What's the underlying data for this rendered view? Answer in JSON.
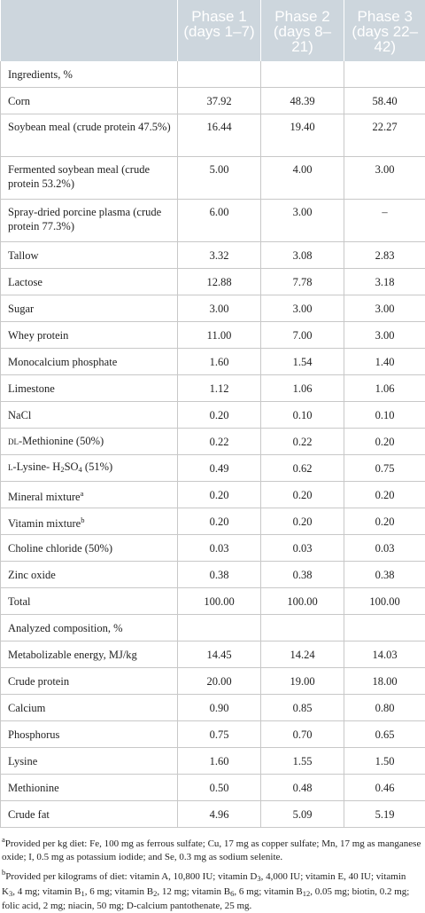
{
  "header": {
    "col0": "",
    "phase1": "Phase 1 (days 1–7)",
    "phase2": "Phase 2 (days 8–21)",
    "phase3": "Phase 3 (days 22–42)"
  },
  "rows": {
    "ingredients_head": "Ingredients, %",
    "corn": [
      "Corn",
      "37.92",
      "48.39",
      "58.40"
    ],
    "sbm": [
      "Soybean meal (crude protein 47.5%)",
      "16.44",
      "19.40",
      "22.27"
    ],
    "fsbm": [
      "Fermented soybean meal (crude protein 53.2%)",
      "5.00",
      "4.00",
      "3.00"
    ],
    "sdpp": [
      "Spray-dried porcine plasma (crude protein 77.3%)",
      "6.00",
      "3.00",
      "–"
    ],
    "tallow": [
      "Tallow",
      "3.32",
      "3.08",
      "2.83"
    ],
    "lactose": [
      "Lactose",
      "12.88",
      "7.78",
      "3.18"
    ],
    "sugar": [
      "Sugar",
      "3.00",
      "3.00",
      "3.00"
    ],
    "whey": [
      "Whey protein",
      "11.00",
      "7.00",
      "3.00"
    ],
    "mcp": [
      "Monocalcium phosphate",
      "1.60",
      "1.54",
      "1.40"
    ],
    "limestone": [
      "Limestone",
      "1.12",
      "1.06",
      "1.06"
    ],
    "nacl": [
      "NaCl",
      "0.20",
      "0.10",
      "0.10"
    ],
    "met_prefix": "DL",
    "met": [
      "-Methionine (50%)",
      "0.22",
      "0.22",
      "0.20"
    ],
    "lys_prefix": "L",
    "lys_a": "-Lysine- H",
    "lys_sub1": "2",
    "lys_b": "SO",
    "lys_sub2": "4",
    "lys_c": " (51%)",
    "lys": [
      "",
      "0.49",
      "0.62",
      "0.75"
    ],
    "mineral": [
      "Mineral mixture",
      "0.20",
      "0.20",
      "0.20"
    ],
    "mineral_sup": "a",
    "vitamin": [
      "Vitamin mixture",
      "0.20",
      "0.20",
      "0.20"
    ],
    "vitamin_sup": "b",
    "choline": [
      "Choline chloride (50%)",
      "0.03",
      "0.03",
      "0.03"
    ],
    "zinc": [
      "Zinc oxide",
      "0.38",
      "0.38",
      "0.38"
    ],
    "total": [
      "Total",
      "100.00",
      "100.00",
      "100.00"
    ],
    "analyzed_head": "Analyzed composition, %",
    "me": [
      "Metabolizable energy, MJ/kg",
      "14.45",
      "14.24",
      "14.03"
    ],
    "cp": [
      "Crude protein",
      "20.00",
      "19.00",
      "18.00"
    ],
    "ca": [
      "Calcium",
      "0.90",
      "0.85",
      "0.80"
    ],
    "p": [
      "Phosphorus",
      "0.75",
      "0.70",
      "0.65"
    ],
    "lysine": [
      "Lysine",
      "1.60",
      "1.55",
      "1.50"
    ],
    "methionine": [
      "Methionine",
      "0.50",
      "0.48",
      "0.46"
    ],
    "fat": [
      "Crude fat",
      "4.96",
      "5.09",
      "5.19"
    ]
  },
  "footnotes": {
    "a_mark": "a",
    "a_text": "Provided per kg diet: Fe, 100 mg as ferrous sulfate; Cu, 17 mg as copper sulfate; Mn, 17 mg as manganese oxide; I, 0.5 mg as potassium iodide; and Se, 0.3 mg as sodium selenite.",
    "b_mark": "b",
    "b_t1": "Provided per kilograms of diet: vitamin A, 10,800 IU; vitamin D",
    "b_s1": "3",
    "b_t2": ", 4,000 IU; vitamin E, 40 IU; vitamin K",
    "b_s2": "3",
    "b_t3": ", 4 mg; vitamin B",
    "b_s3": "1",
    "b_t4": ", 6 mg; vitamin B",
    "b_s4": "2",
    "b_t5": ", 12 mg; vitamin B",
    "b_s5": "6",
    "b_t6": ", 6 mg; vitamin B",
    "b_s6": "12",
    "b_t7": ", 0.05 mg; biotin, 0.2 mg; folic acid, 2 mg; niacin, 50 mg; D-calcium pantothenate, 25 mg."
  },
  "colors": {
    "header_bg": "#cdd6dd",
    "header_text": "#ffffff",
    "rule": "#c8c8c8"
  }
}
